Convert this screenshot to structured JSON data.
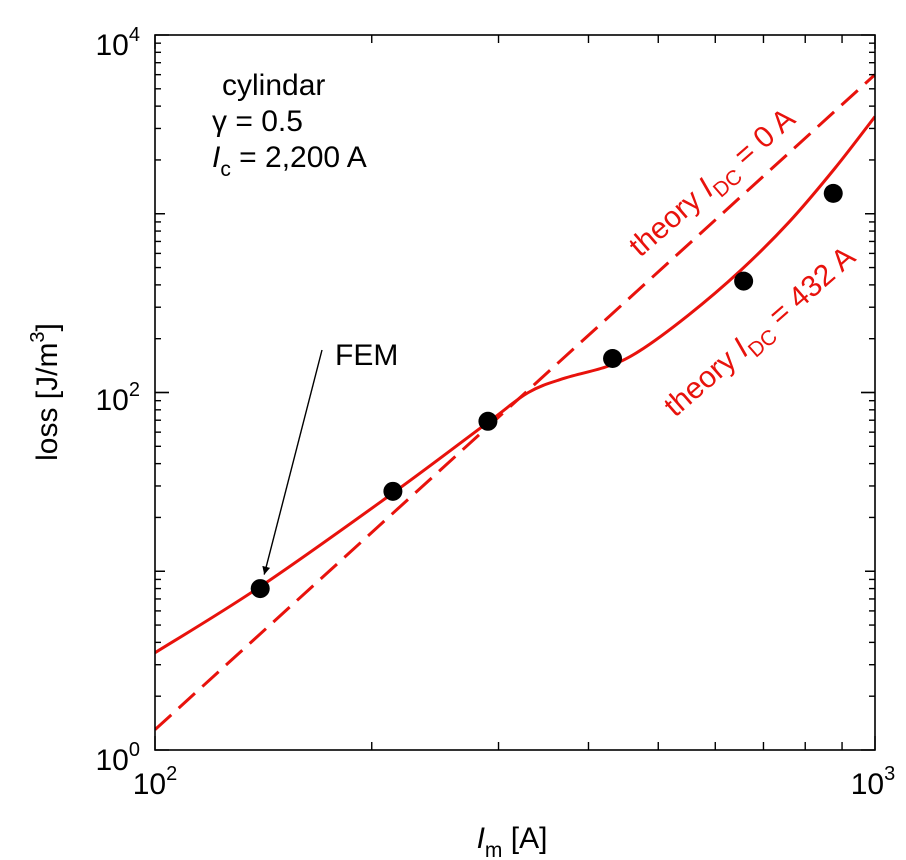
{
  "chart_data": {
    "type": "line",
    "x_scale": "log",
    "y_scale": "log",
    "xlim": [
      100,
      1000
    ],
    "ylim": [
      1,
      10000
    ],
    "grid": false,
    "xlabel": {
      "symbol": "I",
      "sub": "m",
      "unit": " [A]"
    },
    "ylabel": {
      "text": "loss [J/m",
      "sup": "3",
      "close": "]"
    },
    "x_ticks": [
      {
        "value": 100,
        "base": "10",
        "exp": "2"
      },
      {
        "value": 1000,
        "base": "10",
        "exp": "3"
      }
    ],
    "y_ticks": [
      {
        "value": 1,
        "base": "10",
        "exp": "0"
      },
      {
        "value": 100,
        "base": "10",
        "exp": "2"
      },
      {
        "value": 10000,
        "base": "10",
        "exp": "4"
      }
    ],
    "annotation_block": {
      "line1": "cylindar",
      "line2": {
        "symbol": "γ",
        "rest": " = 0.5"
      },
      "line3": {
        "symbol": "I",
        "sub": "c",
        "rest": " = 2,200 A"
      }
    },
    "series": [
      {
        "kind": "theory",
        "style": "dashed",
        "color": "#e8120c",
        "label": {
          "prefix": "theory ",
          "symbol": "I",
          "sub": "DC",
          "rest": " = 0 A"
        },
        "x": [
          100,
          1000
        ],
        "y": [
          1.3,
          6000
        ]
      },
      {
        "kind": "theory",
        "style": "solid",
        "color": "#e8120c",
        "label": {
          "prefix": "theory ",
          "symbol": "I",
          "sub": "DC",
          "rest": " = 432 A"
        },
        "x": [
          100,
          140,
          213,
          290,
          330,
          370,
          425,
          470,
          550,
          650,
          760,
          880,
          1000
        ],
        "y": [
          3.5,
          8.2,
          27,
          68,
          100,
          120,
          140,
          170,
          270,
          480,
          900,
          1800,
          3500
        ]
      },
      {
        "kind": "fem",
        "style": "markers",
        "color": "#000000",
        "label": "FEM",
        "x": [
          140,
          214,
          290,
          432,
          657,
          875
        ],
        "y": [
          8,
          28,
          69,
          155,
          420,
          1300
        ]
      }
    ],
    "fem_arrow": {
      "from_point_index": 0
    }
  }
}
